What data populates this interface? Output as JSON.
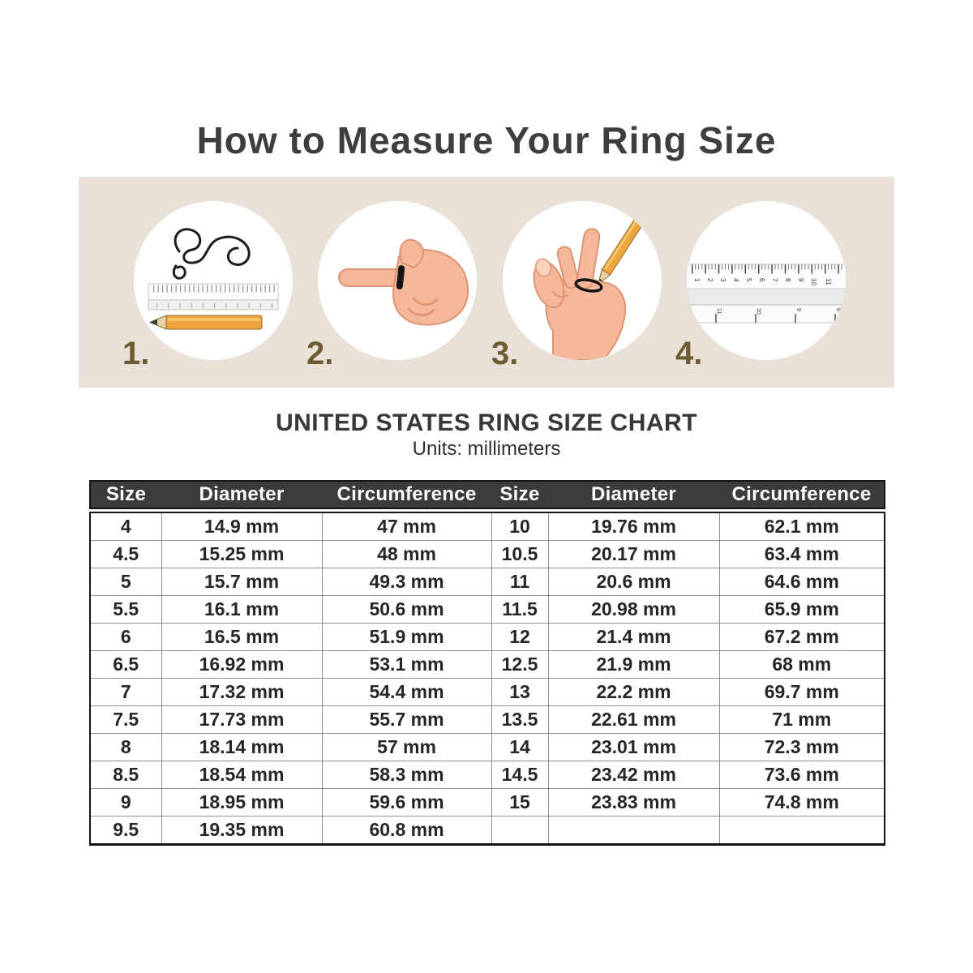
{
  "title": "How to Measure Your Ring Size",
  "steps": [
    {
      "number": "1.",
      "icon": "string-ruler-pencil-icon"
    },
    {
      "number": "2.",
      "icon": "string-tied-on-finger-icon"
    },
    {
      "number": "3.",
      "icon": "mark-string-with-pencil-icon"
    },
    {
      "number": "4.",
      "icon": "measure-with-ruler-icon"
    }
  ],
  "chart": {
    "heading": "UNITED STATES RING SIZE CHART",
    "units": "Units: millimeters"
  },
  "chart_data": {
    "type": "table",
    "title": "UNITED STATES RING SIZE CHART",
    "units": "millimeters",
    "columns": [
      "Size",
      "Diameter",
      "Circumference",
      "Size",
      "Diameter",
      "Circumference"
    ],
    "rows": [
      [
        "4",
        "14.9 mm",
        "47 mm",
        "10",
        "19.76 mm",
        "62.1 mm"
      ],
      [
        "4.5",
        "15.25 mm",
        "48 mm",
        "10.5",
        "20.17 mm",
        "63.4 mm"
      ],
      [
        "5",
        "15.7 mm",
        "49.3 mm",
        "11",
        "20.6 mm",
        "64.6 mm"
      ],
      [
        "5.5",
        "16.1 mm",
        "50.6 mm",
        "11.5",
        "20.98 mm",
        "65.9 mm"
      ],
      [
        "6",
        "16.5 mm",
        "51.9 mm",
        "12",
        "21.4 mm",
        "67.2 mm"
      ],
      [
        "6.5",
        "16.92 mm",
        "53.1 mm",
        "12.5",
        "21.9 mm",
        "68 mm"
      ],
      [
        "7",
        "17.32 mm",
        "54.4 mm",
        "13",
        "22.2 mm",
        "69.7 mm"
      ],
      [
        "7.5",
        "17.73 mm",
        "55.7 mm",
        "13.5",
        "22.61 mm",
        "71 mm"
      ],
      [
        "8",
        "18.14 mm",
        "57 mm",
        "14",
        "23.01 mm",
        "72.3 mm"
      ],
      [
        "8.5",
        "18.54 mm",
        "58.3 mm",
        "14.5",
        "23.42 mm",
        "73.6 mm"
      ],
      [
        "9",
        "18.95 mm",
        "59.6 mm",
        "15",
        "23.83 mm",
        "74.8 mm"
      ],
      [
        "9.5",
        "19.35 mm",
        "60.8 mm",
        "",
        "",
        ""
      ]
    ]
  },
  "colors": {
    "banner_bg": "#E9E1D7",
    "header_bg": "#3B3B3B",
    "header_text": "#FFFFFF",
    "step_number": "#6D5C31",
    "title_text": "#3E3E3E",
    "table_border_outer": "#141414",
    "table_border_inner": "#8F8F8F"
  }
}
